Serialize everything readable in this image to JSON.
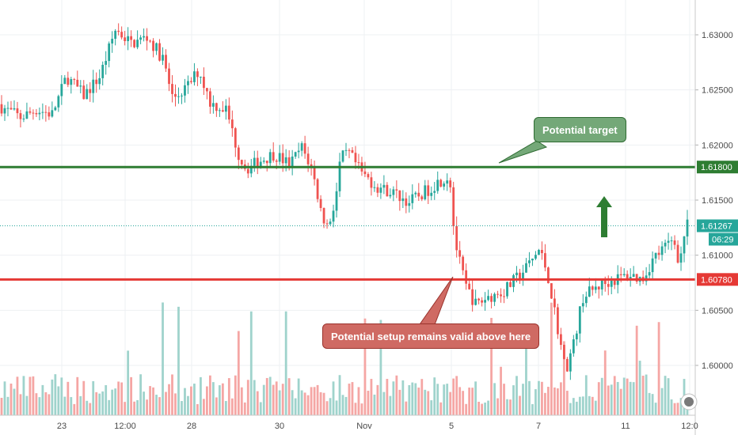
{
  "chart_data": {
    "type": "candlestick",
    "y_ticks": [
      "1.63000",
      "1.62500",
      "1.62000",
      "1.61500",
      "1.61000",
      "1.60500",
      "1.60000"
    ],
    "y_tick_values": [
      1.63,
      1.625,
      1.62,
      1.615,
      1.61,
      1.605,
      1.6
    ],
    "ylim": [
      1.5955,
      1.6335
    ],
    "x_ticks": [
      "23",
      "12:00",
      "28",
      "30",
      "Nov",
      "5",
      "7",
      "11",
      "12:0"
    ],
    "horizontal_levels": [
      {
        "price": 1.618,
        "label": "1.61800",
        "color": "#2e7d32"
      },
      {
        "price": 1.6078,
        "label": "1.60780",
        "color": "#e53935"
      }
    ],
    "current_price": {
      "price": 1.61267,
      "label": "1.61267",
      "countdown": "06:29",
      "color": "#26a69a"
    },
    "annotations": {
      "target": "Potential target",
      "setup": "Potential setup remains valid above here"
    },
    "path_anchors": [
      [
        0,
        1.6237
      ],
      [
        30,
        1.6225
      ],
      [
        50,
        1.6232
      ],
      [
        70,
        1.6228
      ],
      [
        88,
        1.6262
      ],
      [
        110,
        1.6245
      ],
      [
        130,
        1.6262
      ],
      [
        150,
        1.6305
      ],
      [
        170,
        1.6292
      ],
      [
        190,
        1.6298
      ],
      [
        210,
        1.6278
      ],
      [
        222,
        1.6242
      ],
      [
        240,
        1.6252
      ],
      [
        255,
        1.6268
      ],
      [
        270,
        1.6238
      ],
      [
        290,
        1.6232
      ],
      [
        305,
        1.6192
      ],
      [
        315,
        1.6178
      ],
      [
        330,
        1.6185
      ],
      [
        350,
        1.6192
      ],
      [
        370,
        1.6182
      ],
      [
        385,
        1.6198
      ],
      [
        398,
        1.6178
      ],
      [
        410,
        1.6138
      ],
      [
        418,
        1.6125
      ],
      [
        428,
        1.6152
      ],
      [
        434,
        1.6188
      ],
      [
        445,
        1.6192
      ],
      [
        460,
        1.6175
      ],
      [
        480,
        1.6162
      ],
      [
        500,
        1.6157
      ],
      [
        520,
        1.6148
      ],
      [
        540,
        1.6157
      ],
      [
        560,
        1.6168
      ],
      [
        572,
        1.6172
      ],
      [
        578,
        1.6115
      ],
      [
        585,
        1.6092
      ],
      [
        592,
        1.6072
      ],
      [
        605,
        1.6055
      ],
      [
        620,
        1.6062
      ],
      [
        640,
        1.6067
      ],
      [
        655,
        1.6078
      ],
      [
        668,
        1.6088
      ],
      [
        685,
        1.6105
      ],
      [
        695,
        1.6085
      ],
      [
        708,
        1.6035
      ],
      [
        718,
        1.5995
      ],
      [
        728,
        1.6018
      ],
      [
        740,
        1.6062
      ],
      [
        760,
        1.6072
      ],
      [
        780,
        1.6078
      ],
      [
        800,
        1.6082
      ],
      [
        815,
        1.6078
      ],
      [
        830,
        1.6098
      ],
      [
        845,
        1.6108
      ],
      [
        855,
        1.6115
      ],
      [
        862,
        1.6092
      ],
      [
        870,
        1.6127
      ]
    ],
    "candle_count": 218,
    "colors": {
      "up": "#26a69a",
      "down": "#ef5350",
      "vol_up": "#9fd3cc",
      "vol_down": "#f5a6a4"
    },
    "grid": true,
    "volume": true
  }
}
